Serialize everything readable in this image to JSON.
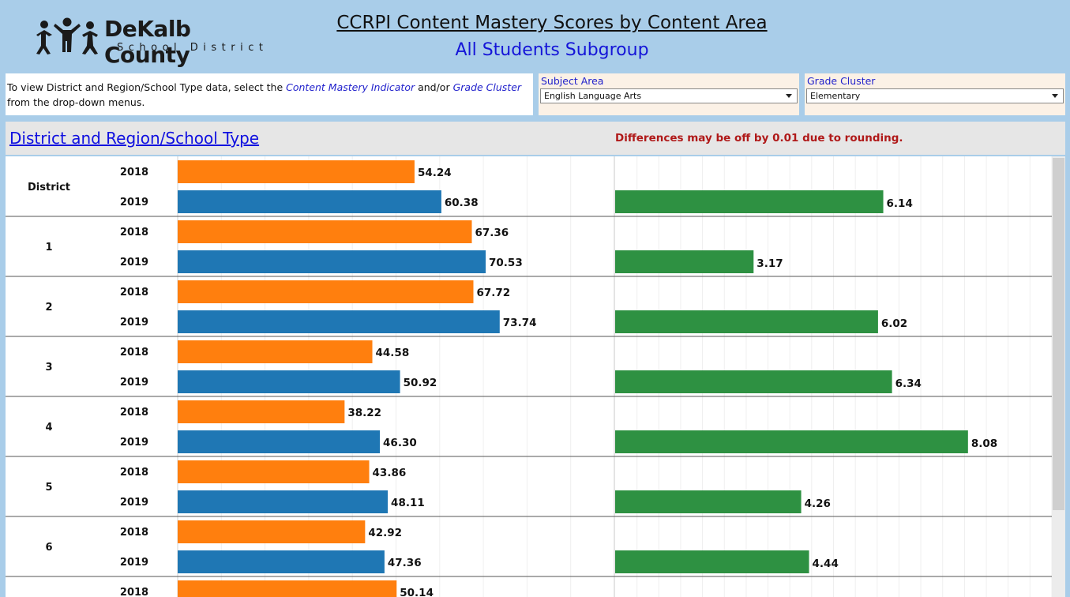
{
  "header": {
    "logo_name": "DeKalb County",
    "logo_sub": "School District",
    "title": "CCRPI Content Mastery Scores by Content Area",
    "subtitle": "All Students Subgroup"
  },
  "instructions": {
    "part1": "To view District and Region/School Type data, select the ",
    "link1": "Content Mastery Indicator",
    "part2": " and/or ",
    "link2": "Grade Cluster",
    "part3": " from the drop-down menus."
  },
  "filters": {
    "subject": {
      "label": "Subject Area",
      "value": "English Language Arts"
    },
    "grade": {
      "label": "Grade Cluster",
      "value": "Elementary"
    }
  },
  "section": {
    "title": "District and Region/School Type",
    "note": "Differences may be off by 0.01 due to rounding."
  },
  "colors": {
    "y2018": "#ff7f0e",
    "y2019": "#1f77b4",
    "diff": "#2e9142"
  },
  "chart_data": {
    "type": "bar",
    "orientation": "horizontal",
    "groups": [
      "District",
      "1",
      "2",
      "3",
      "4",
      "5",
      "6",
      ""
    ],
    "years": [
      "2018",
      "2019"
    ],
    "scores": [
      {
        "group": "District",
        "2018": 54.24,
        "2019": 60.38,
        "diff": 6.14
      },
      {
        "group": "1",
        "2018": 67.36,
        "2019": 70.53,
        "diff": 3.17
      },
      {
        "group": "2",
        "2018": 67.72,
        "2019": 73.74,
        "diff": 6.02
      },
      {
        "group": "3",
        "2018": 44.58,
        "2019": 50.92,
        "diff": 6.34
      },
      {
        "group": "4",
        "2018": 38.22,
        "2019": 46.3,
        "diff": 8.08
      },
      {
        "group": "5",
        "2018": 43.86,
        "2019": 48.11,
        "diff": 4.26
      },
      {
        "group": "6",
        "2018": 42.92,
        "2019": 47.36,
        "diff": 4.44
      },
      {
        "group": "",
        "2018": 50.14,
        "2019": null,
        "diff": null
      }
    ],
    "labels_2018": [
      "54.24",
      "67.36",
      "67.72",
      "44.58",
      "38.22",
      "43.86",
      "42.92",
      "50.14"
    ],
    "labels_2019": [
      "60.38",
      "70.53",
      "73.74",
      "50.92",
      "46.30",
      "48.11",
      "47.36",
      null
    ],
    "labels_diff": [
      "6.14",
      "3.17",
      "6.02",
      "6.34",
      "8.08",
      "4.26",
      "4.44",
      null
    ],
    "score_axis": [
      0,
      100
    ],
    "diff_axis": [
      0,
      10
    ],
    "grid": true
  }
}
